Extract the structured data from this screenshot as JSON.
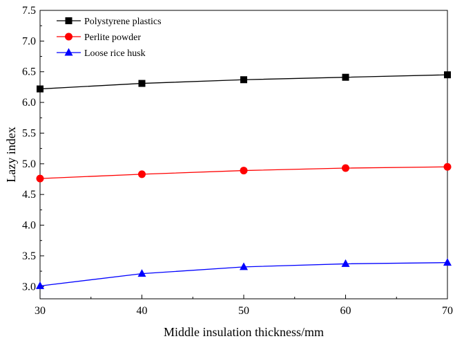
{
  "chart_data": {
    "type": "line",
    "xlabel": "Middle insulation thickness/mm",
    "ylabel": "Lazy index",
    "x": [
      30,
      40,
      50,
      60,
      70
    ],
    "xlim": [
      30,
      70
    ],
    "ylim": [
      2.8,
      7.5
    ],
    "xticks": [
      "30",
      "40",
      "50",
      "60",
      "70"
    ],
    "yticks": [
      "3.0",
      "3.5",
      "4.0",
      "4.5",
      "5.0",
      "5.5",
      "6.0",
      "6.5",
      "7.0",
      "7.5"
    ],
    "legend_position": "top-left",
    "grid": false,
    "series": [
      {
        "name": "Polystyrene plastics",
        "values": [
          6.22,
          6.31,
          6.37,
          6.41,
          6.45
        ],
        "color": "#000000",
        "marker": "square"
      },
      {
        "name": "Perlite powder",
        "values": [
          4.76,
          4.83,
          4.89,
          4.93,
          4.95
        ],
        "color": "#ff0000",
        "marker": "circle"
      },
      {
        "name": "Loose rice husk",
        "values": [
          3.01,
          3.21,
          3.32,
          3.37,
          3.39
        ],
        "color": "#0000ff",
        "marker": "triangle"
      }
    ]
  }
}
